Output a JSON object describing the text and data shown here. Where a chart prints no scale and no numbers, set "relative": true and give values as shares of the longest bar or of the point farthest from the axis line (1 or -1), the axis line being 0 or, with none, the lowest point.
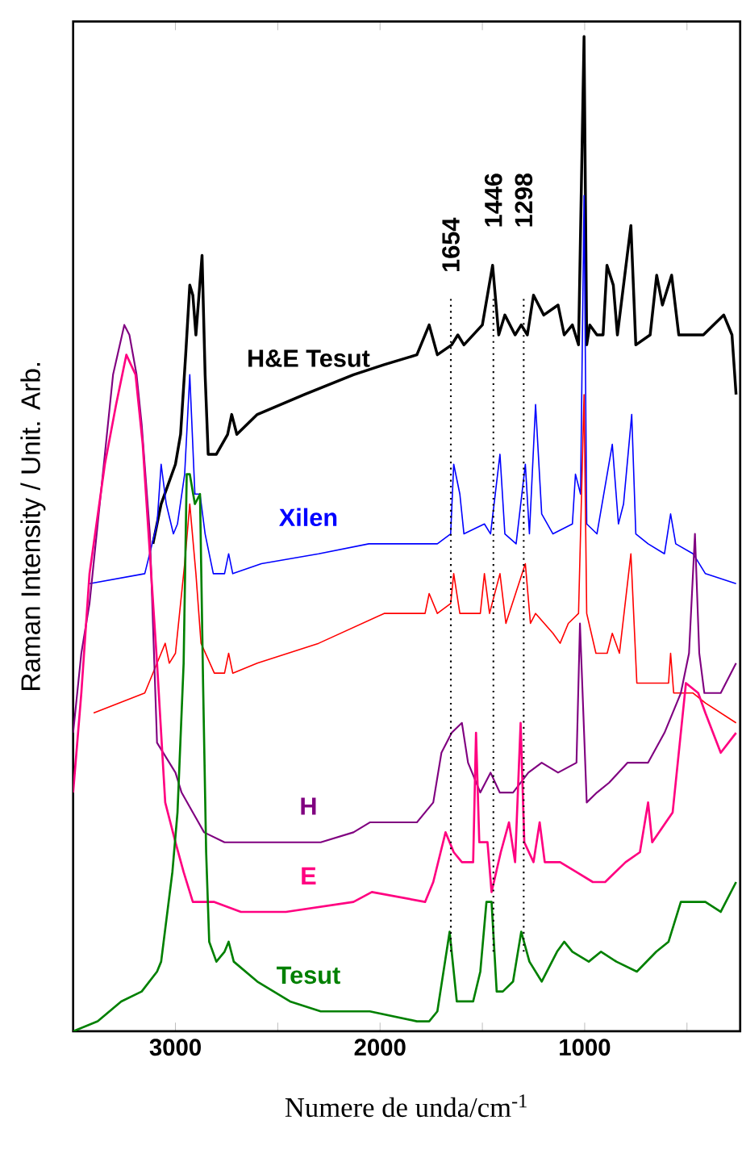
{
  "chart_data": {
    "type": "line",
    "relative": true,
    "xlabel": "Numere de unda/cm$^{-1}$",
    "ylabel": "Raman Intensity / Unit. Arb.",
    "xlim": [
      3500,
      240
    ],
    "xticks": [
      3000,
      {
        "value": 2500,
        "label": null
      },
      2000,
      {
        "value": 1500,
        "label": null
      },
      1000,
      {
        "value": 500,
        "label": null
      }
    ],
    "ref_lines": [
      {
        "axis": "x",
        "value": 1654,
        "label": "1654",
        "line_style": "dotted"
      },
      {
        "axis": "x",
        "value": 1446,
        "label": "1446",
        "line_style": "dotted"
      },
      {
        "axis": "x",
        "value": 1298,
        "label": "1298",
        "line_style": "dotted"
      }
    ],
    "series": [
      {
        "name": "H&E Tesut",
        "color": "#000000",
        "x": [
          3110,
          3070,
          3000,
          2975,
          2950,
          2930,
          2915,
          2900,
          2870,
          2855,
          2840,
          2800,
          2745,
          2725,
          2700,
          2600,
          2370,
          2130,
          1980,
          1820,
          1760,
          1720,
          1650,
          1620,
          1590,
          1500,
          1450,
          1420,
          1390,
          1340,
          1310,
          1280,
          1250,
          1200,
          1130,
          1100,
          1060,
          1030,
          1003,
          990,
          975,
          940,
          910,
          891,
          860,
          840,
          774,
          750,
          680,
          648,
          620,
          575,
          540,
          420,
          320,
          280,
          260
        ],
        "values": [
          0.49,
          0.53,
          0.57,
          0.6,
          0.68,
          0.75,
          0.74,
          0.7,
          0.78,
          0.66,
          0.58,
          0.58,
          0.6,
          0.62,
          0.6,
          0.62,
          0.64,
          0.66,
          0.67,
          0.68,
          0.71,
          0.68,
          0.69,
          0.7,
          0.69,
          0.71,
          0.77,
          0.7,
          0.72,
          0.7,
          0.71,
          0.7,
          0.74,
          0.72,
          0.73,
          0.7,
          0.71,
          0.69,
          1.0,
          0.69,
          0.71,
          0.7,
          0.7,
          0.77,
          0.75,
          0.7,
          0.81,
          0.69,
          0.7,
          0.76,
          0.73,
          0.76,
          0.7,
          0.7,
          0.72,
          0.7,
          0.64
        ]
      },
      {
        "name": "Xilen",
        "color": "#0000ff",
        "x": [
          3420,
          3150,
          3090,
          3070,
          3045,
          3010,
          2990,
          2955,
          2930,
          2905,
          2880,
          2855,
          2815,
          2760,
          2740,
          2720,
          2580,
          2300,
          2055,
          1720,
          1655,
          1640,
          1610,
          1590,
          1490,
          1460,
          1414,
          1390,
          1335,
          1290,
          1270,
          1240,
          1210,
          1155,
          1060,
          1045,
          1020,
          1003,
          990,
          940,
          865,
          835,
          810,
          770,
          750,
          690,
          610,
          580,
          555,
          470,
          410,
          260
        ],
        "values": [
          0.45,
          0.46,
          0.51,
          0.57,
          0.53,
          0.5,
          0.51,
          0.56,
          0.66,
          0.54,
          0.54,
          0.5,
          0.46,
          0.46,
          0.48,
          0.46,
          0.47,
          0.48,
          0.49,
          0.49,
          0.5,
          0.57,
          0.54,
          0.5,
          0.51,
          0.5,
          0.58,
          0.5,
          0.49,
          0.57,
          0.5,
          0.63,
          0.52,
          0.5,
          0.51,
          0.56,
          0.54,
          0.84,
          0.51,
          0.5,
          0.59,
          0.51,
          0.53,
          0.62,
          0.5,
          0.49,
          0.48,
          0.52,
          0.49,
          0.48,
          0.46,
          0.45
        ]
      },
      {
        "color": "#ff0000",
        "x": [
          3400,
          3150,
          3070,
          3050,
          3030,
          3000,
          2955,
          2930,
          2900,
          2875,
          2810,
          2760,
          2740,
          2720,
          2600,
          2300,
          1980,
          1780,
          1760,
          1720,
          1655,
          1640,
          1610,
          1510,
          1490,
          1465,
          1414,
          1385,
          1290,
          1265,
          1240,
          1155,
          1120,
          1080,
          1030,
          1003,
          990,
          945,
          890,
          865,
          830,
          774,
          745,
          650,
          590,
          580,
          565,
          470,
          410,
          260
        ],
        "values": [
          0.32,
          0.34,
          0.38,
          0.39,
          0.37,
          0.38,
          0.47,
          0.53,
          0.46,
          0.39,
          0.36,
          0.36,
          0.38,
          0.36,
          0.37,
          0.39,
          0.42,
          0.42,
          0.44,
          0.42,
          0.43,
          0.46,
          0.42,
          0.42,
          0.46,
          0.42,
          0.46,
          0.41,
          0.47,
          0.41,
          0.42,
          0.4,
          0.39,
          0.41,
          0.42,
          0.64,
          0.42,
          0.38,
          0.38,
          0.4,
          0.38,
          0.48,
          0.35,
          0.35,
          0.35,
          0.38,
          0.34,
          0.34,
          0.33,
          0.31
        ]
      },
      {
        "name": "H",
        "color": "#800080",
        "x": [
          3500,
          3460,
          3420,
          3380,
          3345,
          3305,
          3250,
          3225,
          3190,
          3165,
          3125,
          3090,
          3000,
          2970,
          2915,
          2860,
          2760,
          2600,
          2290,
          2130,
          2050,
          1820,
          1740,
          1700,
          1650,
          1600,
          1570,
          1510,
          1460,
          1415,
          1350,
          1275,
          1210,
          1130,
          1040,
          1023,
          990,
          940,
          880,
          790,
          690,
          610,
          570,
          530,
          490,
          461,
          440,
          415,
          335,
          260
        ],
        "values": [
          0.3,
          0.38,
          0.43,
          0.51,
          0.58,
          0.66,
          0.71,
          0.7,
          0.66,
          0.61,
          0.5,
          0.29,
          0.26,
          0.24,
          0.22,
          0.2,
          0.19,
          0.19,
          0.19,
          0.2,
          0.21,
          0.21,
          0.23,
          0.28,
          0.3,
          0.31,
          0.27,
          0.24,
          0.26,
          0.24,
          0.24,
          0.26,
          0.27,
          0.26,
          0.27,
          0.41,
          0.23,
          0.24,
          0.25,
          0.27,
          0.27,
          0.3,
          0.32,
          0.34,
          0.38,
          0.5,
          0.38,
          0.34,
          0.34,
          0.37
        ]
      },
      {
        "name": "E",
        "color": "#ff0080",
        "x": [
          3500,
          3460,
          3420,
          3345,
          3290,
          3240,
          3195,
          3160,
          3125,
          3090,
          3050,
          3000,
          2960,
          2915,
          2810,
          2680,
          2460,
          2130,
          2040,
          1780,
          1740,
          1680,
          1640,
          1600,
          1545,
          1531,
          1515,
          1475,
          1455,
          1410,
          1370,
          1340,
          1313,
          1295,
          1250,
          1220,
          1195,
          1120,
          1040,
          960,
          900,
          800,
          730,
          690,
          670,
          570,
          505,
          445,
          410,
          335,
          260
        ],
        "values": [
          0.24,
          0.34,
          0.46,
          0.57,
          0.63,
          0.68,
          0.66,
          0.59,
          0.48,
          0.37,
          0.23,
          0.19,
          0.16,
          0.13,
          0.13,
          0.12,
          0.12,
          0.13,
          0.14,
          0.13,
          0.15,
          0.2,
          0.18,
          0.17,
          0.17,
          0.3,
          0.19,
          0.19,
          0.14,
          0.18,
          0.21,
          0.17,
          0.31,
          0.19,
          0.17,
          0.21,
          0.17,
          0.17,
          0.16,
          0.15,
          0.15,
          0.17,
          0.18,
          0.23,
          0.19,
          0.22,
          0.35,
          0.34,
          0.32,
          0.28,
          0.3
        ]
      },
      {
        "name": "Tesut",
        "color": "#008000",
        "x": [
          3500,
          3380,
          3265,
          3165,
          3090,
          3070,
          3015,
          2990,
          2960,
          2945,
          2930,
          2905,
          2880,
          2865,
          2850,
          2835,
          2800,
          2760,
          2740,
          2715,
          2600,
          2440,
          2290,
          2050,
          1820,
          1760,
          1720,
          1660,
          1625,
          1545,
          1510,
          1480,
          1455,
          1430,
          1400,
          1350,
          1310,
          1270,
          1210,
          1135,
          1100,
          1060,
          980,
          920,
          845,
          745,
          650,
          590,
          530,
          410,
          335,
          260
        ],
        "values": [
          0.0,
          0.01,
          0.03,
          0.04,
          0.06,
          0.07,
          0.16,
          0.22,
          0.37,
          0.56,
          0.56,
          0.53,
          0.54,
          0.35,
          0.18,
          0.09,
          0.07,
          0.08,
          0.09,
          0.07,
          0.05,
          0.03,
          0.02,
          0.02,
          0.01,
          0.01,
          0.02,
          0.1,
          0.03,
          0.03,
          0.06,
          0.13,
          0.13,
          0.04,
          0.04,
          0.05,
          0.1,
          0.07,
          0.05,
          0.08,
          0.09,
          0.08,
          0.07,
          0.08,
          0.07,
          0.06,
          0.08,
          0.09,
          0.13,
          0.13,
          0.12,
          0.15
        ]
      }
    ]
  }
}
